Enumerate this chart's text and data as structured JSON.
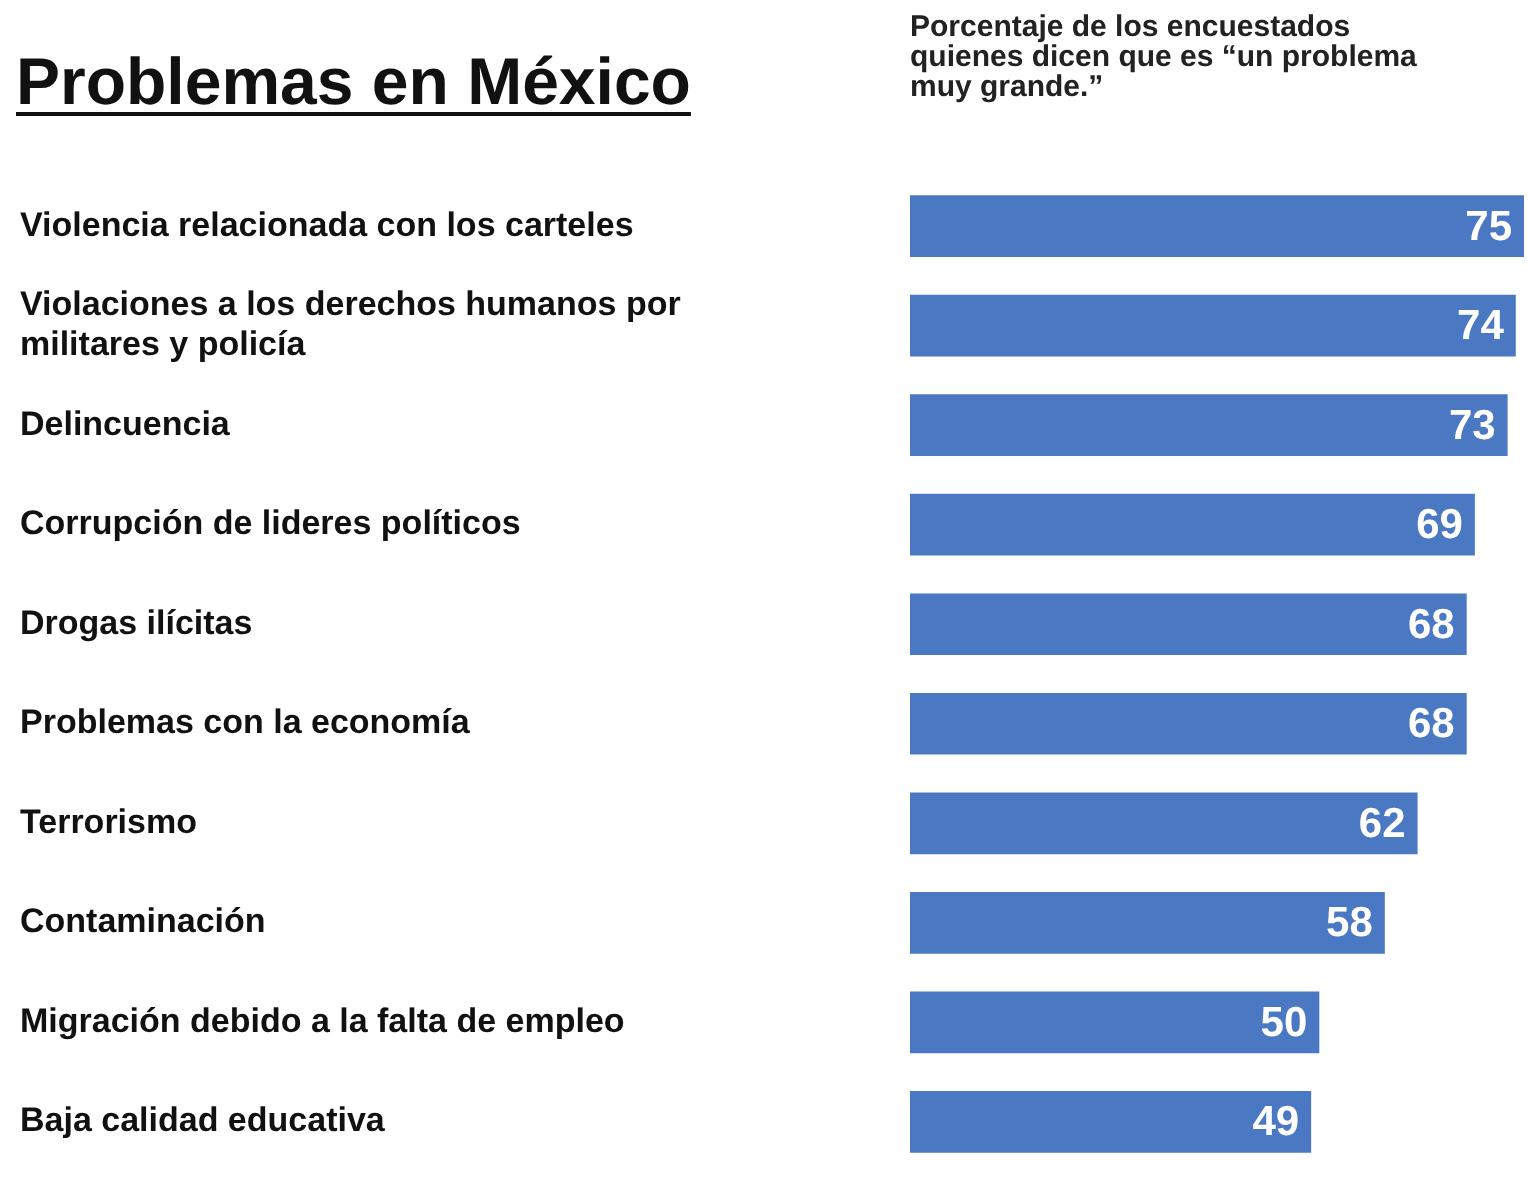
{
  "chart_data": {
    "type": "bar",
    "orientation": "horizontal",
    "title": "Problemas en México",
    "subtitle": "Porcentaje de los encuestados quienes dicen que es “un problema muy grande.”",
    "categories": [
      "Violencia relacionada con los carteles",
      "Violaciones a los derechos humanos por militares y policía",
      "Delincuencia",
      "Corrupción de lideres políticos",
      "Drogas ilícitas",
      "Problemas con la economía",
      "Terrorismo",
      "Contaminación",
      "Migración debido a la falta de empleo",
      "Baja calidad educativa"
    ],
    "values": [
      75,
      74,
      73,
      69,
      68,
      68,
      62,
      58,
      50,
      49
    ],
    "color": "#4a78c2",
    "xlim": [
      0,
      75
    ],
    "data_labels": true,
    "legend": false,
    "tick_labels": "y"
  }
}
